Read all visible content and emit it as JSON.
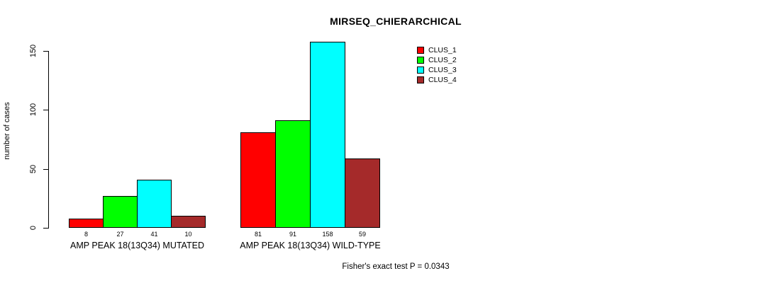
{
  "chart_data": {
    "type": "bar",
    "title": "MIRSEQ_CHIERARCHICAL",
    "ylabel": "number of cases",
    "xlabel": "",
    "ylim": [
      0,
      160
    ],
    "yticks": [
      0,
      50,
      100,
      150
    ],
    "grid": false,
    "legend_position": "top-right",
    "categories": [
      "AMP PEAK 18(13Q34) MUTATED",
      "AMP PEAK 18(13Q34) WILD-TYPE"
    ],
    "series": [
      {
        "name": "CLUS_1",
        "color": "#FF0000",
        "values": [
          8,
          81
        ]
      },
      {
        "name": "CLUS_2",
        "color": "#00FF00",
        "values": [
          27,
          91
        ]
      },
      {
        "name": "CLUS_3",
        "color": "#00FFFF",
        "values": [
          41,
          158
        ]
      },
      {
        "name": "CLUS_4",
        "color": "#A52A2A",
        "values": [
          10,
          59
        ]
      }
    ],
    "bar_value_labels": [
      [
        8,
        27,
        41,
        10
      ],
      [
        81,
        91,
        158,
        59
      ]
    ],
    "annotation": "Fisher's exact test P = 0.0343"
  }
}
